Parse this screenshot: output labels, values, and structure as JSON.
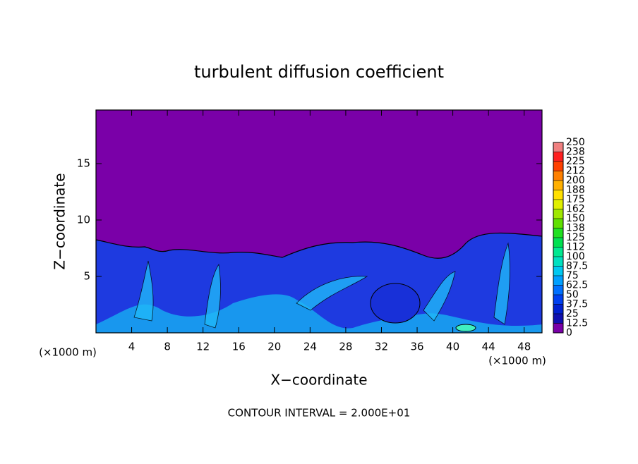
{
  "chart_data": {
    "type": "contour",
    "title": "turbulent diffusion coefficient",
    "x_label": "X−coordinate",
    "y_label": "Z−coordinate",
    "x_unit_left": "(×1000 m)",
    "x_unit_right": "(×1000 m)",
    "annotation": "CONTOUR INTERVAL = 2.000E+01",
    "xlim": [
      0,
      50
    ],
    "xticks": [
      4,
      8,
      12,
      16,
      20,
      24,
      28,
      32,
      36,
      40,
      44,
      48
    ],
    "ylim": [
      0,
      19.75
    ],
    "yticks": [
      5,
      10,
      15
    ],
    "colorbar": {
      "levels": [
        0,
        12.5,
        25,
        37.5,
        50,
        62.5,
        75,
        87.5,
        100,
        {
          "value": 112.5,
          "label": "112"
        },
        125,
        {
          "value": 137.5,
          "label": "138"
        },
        150,
        {
          "value": 162.5,
          "label": "162"
        },
        175,
        {
          "value": 187.5,
          "label": "188"
        },
        200,
        {
          "value": 212.5,
          "label": "212"
        },
        225,
        {
          "value": 237.5,
          "label": "238"
        },
        250
      ],
      "colors": [
        "#7a00a8",
        "#1010b0",
        "#0020d0",
        "#0040f0",
        "#0070ff",
        "#00a0ff",
        "#00c8f0",
        "#00e0c0",
        "#00e890",
        "#00e050",
        "#20e020",
        "#60e000",
        "#a0e800",
        "#e0f000",
        "#ffe000",
        "#ffb000",
        "#ff8000",
        "#ff4000",
        "#ff2020",
        "#f08080"
      ]
    }
  }
}
